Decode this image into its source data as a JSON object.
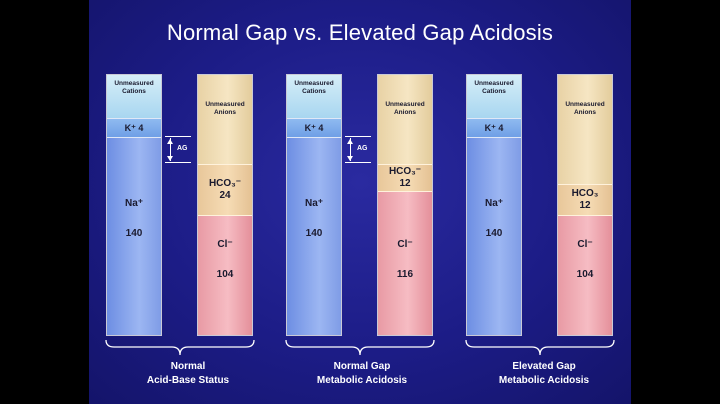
{
  "title": "Normal Gap vs. Elevated Gap Acidosis",
  "ag_label": "AG",
  "panels": [
    {
      "cations": {
        "unmeasured": [
          "Unmeasured",
          "Cations"
        ],
        "k_label": "K⁺ 4",
        "na_ion": "Na⁺",
        "na_value": "140"
      },
      "anions": {
        "unmeasured": [
          "Unmeasured",
          "Anions"
        ],
        "hco3_ion": "HCO₃⁻",
        "hco3_value": "24",
        "cl_ion": "Cl⁻",
        "cl_value": "104"
      },
      "caption": [
        "Normal",
        "Acid-Base Status"
      ]
    },
    {
      "cations": {
        "unmeasured": [
          "Unmeasured",
          "Cations"
        ],
        "k_label": "K⁺ 4",
        "na_ion": "Na⁺",
        "na_value": "140"
      },
      "anions": {
        "unmeasured": [
          "Unmeasured",
          "Anions"
        ],
        "hco3_ion": "HCO₃⁻",
        "hco3_value": "12",
        "cl_ion": "Cl⁻",
        "cl_value": "116"
      },
      "caption": [
        "Normal Gap",
        "Metabolic Acidosis"
      ]
    },
    {
      "cations": {
        "unmeasured": [
          "Unmeasured",
          "Cations"
        ],
        "k_label": "K⁺ 4",
        "na_ion": "Na⁺",
        "na_value": "140"
      },
      "anions": {
        "unmeasured": [
          "Unmeasured",
          "Anions"
        ],
        "hco3_ion": "HCO₃",
        "hco3_value": "12",
        "cl_ion": "Cl⁻",
        "cl_value": "104"
      },
      "caption": [
        "Elevated Gap",
        "Metabolic Acidosis"
      ]
    }
  ]
}
